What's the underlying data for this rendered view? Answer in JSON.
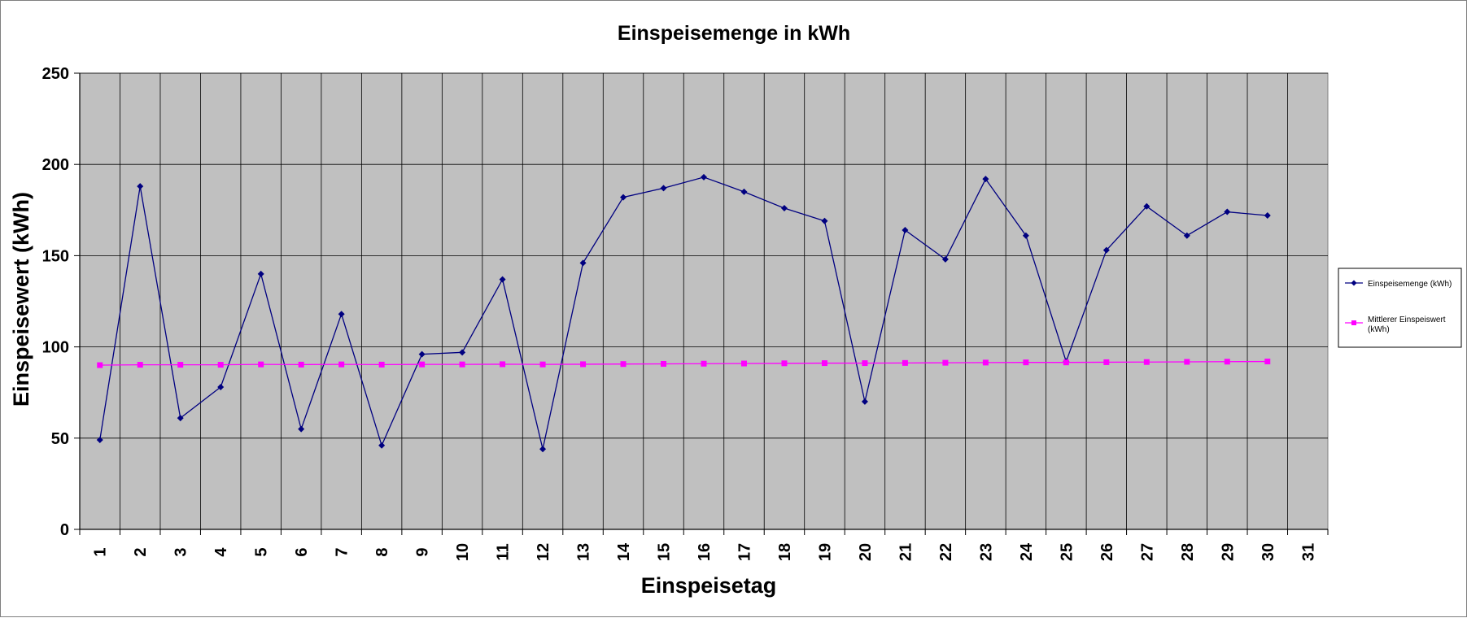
{
  "chart_data": {
    "type": "line",
    "title": "Einspeisemenge in kWh",
    "xlabel": "Einspeisetag",
    "ylabel": "Einspeisewert  (kWh)",
    "categories": [
      "1",
      "2",
      "3",
      "4",
      "5",
      "6",
      "7",
      "8",
      "9",
      "10",
      "11",
      "12",
      "13",
      "14",
      "15",
      "16",
      "17",
      "18",
      "19",
      "20",
      "21",
      "22",
      "23",
      "24",
      "25",
      "26",
      "27",
      "28",
      "29",
      "30",
      "31"
    ],
    "ylim": [
      0,
      250
    ],
    "yticks": [
      "0",
      "50",
      "100",
      "150",
      "200",
      "250"
    ],
    "grid": true,
    "legend_position": "right",
    "series": [
      {
        "name": "Einspeisemenge (kWh)",
        "color": "#000080",
        "marker": "diamond",
        "values": [
          49,
          188,
          61,
          78,
          140,
          55,
          118,
          46,
          96,
          97,
          137,
          44,
          146,
          182,
          187,
          193,
          185,
          176,
          169,
          70,
          164,
          148,
          192,
          161,
          92,
          153,
          177,
          161,
          174,
          172,
          null
        ]
      },
      {
        "name": "Mittlerer Einspeiswert (kWh)",
        "color": "#ff00ff",
        "marker": "square",
        "values": [
          90,
          90.2,
          90.2,
          90.2,
          90.4,
          90.3,
          90.4,
          90.3,
          90.4,
          90.4,
          90.5,
          90.4,
          90.5,
          90.6,
          90.7,
          90.8,
          90.9,
          91,
          91.1,
          91.1,
          91.2,
          91.3,
          91.4,
          91.5,
          91.5,
          91.6,
          91.7,
          91.8,
          91.9,
          92,
          null
        ]
      }
    ]
  }
}
